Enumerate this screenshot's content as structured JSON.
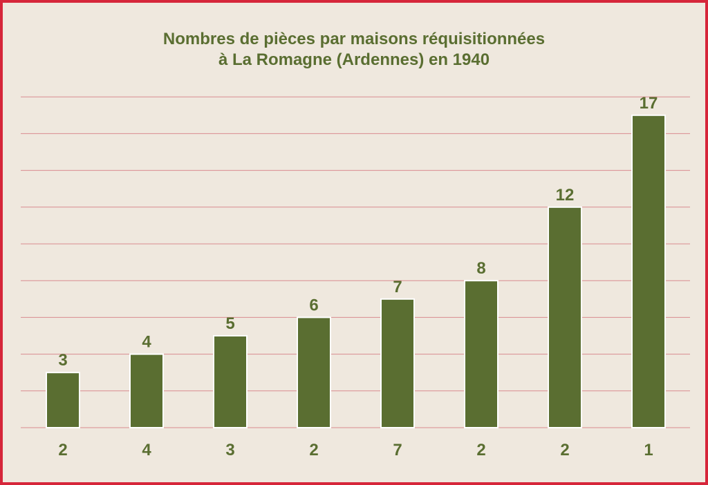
{
  "chart_data": {
    "type": "bar",
    "title_line1": "Nombres de pièces par maisons réquisitionnées",
    "title_line2": "à La Romagne (Ardennes) en 1940",
    "categories": [
      "2",
      "4",
      "3",
      "2",
      "7",
      "2",
      "2",
      "1"
    ],
    "values": [
      3,
      4,
      5,
      6,
      7,
      8,
      12,
      17
    ],
    "xlabel": "",
    "ylabel": "",
    "ylim": [
      0,
      18
    ],
    "grid": true,
    "data_labels": true,
    "colors": {
      "bar": "#5a6e31",
      "bar_outline": "#ffffff",
      "grid": "#d98a8f",
      "text": "#5a6e31",
      "background": "#efe8de",
      "border": "#d6263a"
    }
  }
}
